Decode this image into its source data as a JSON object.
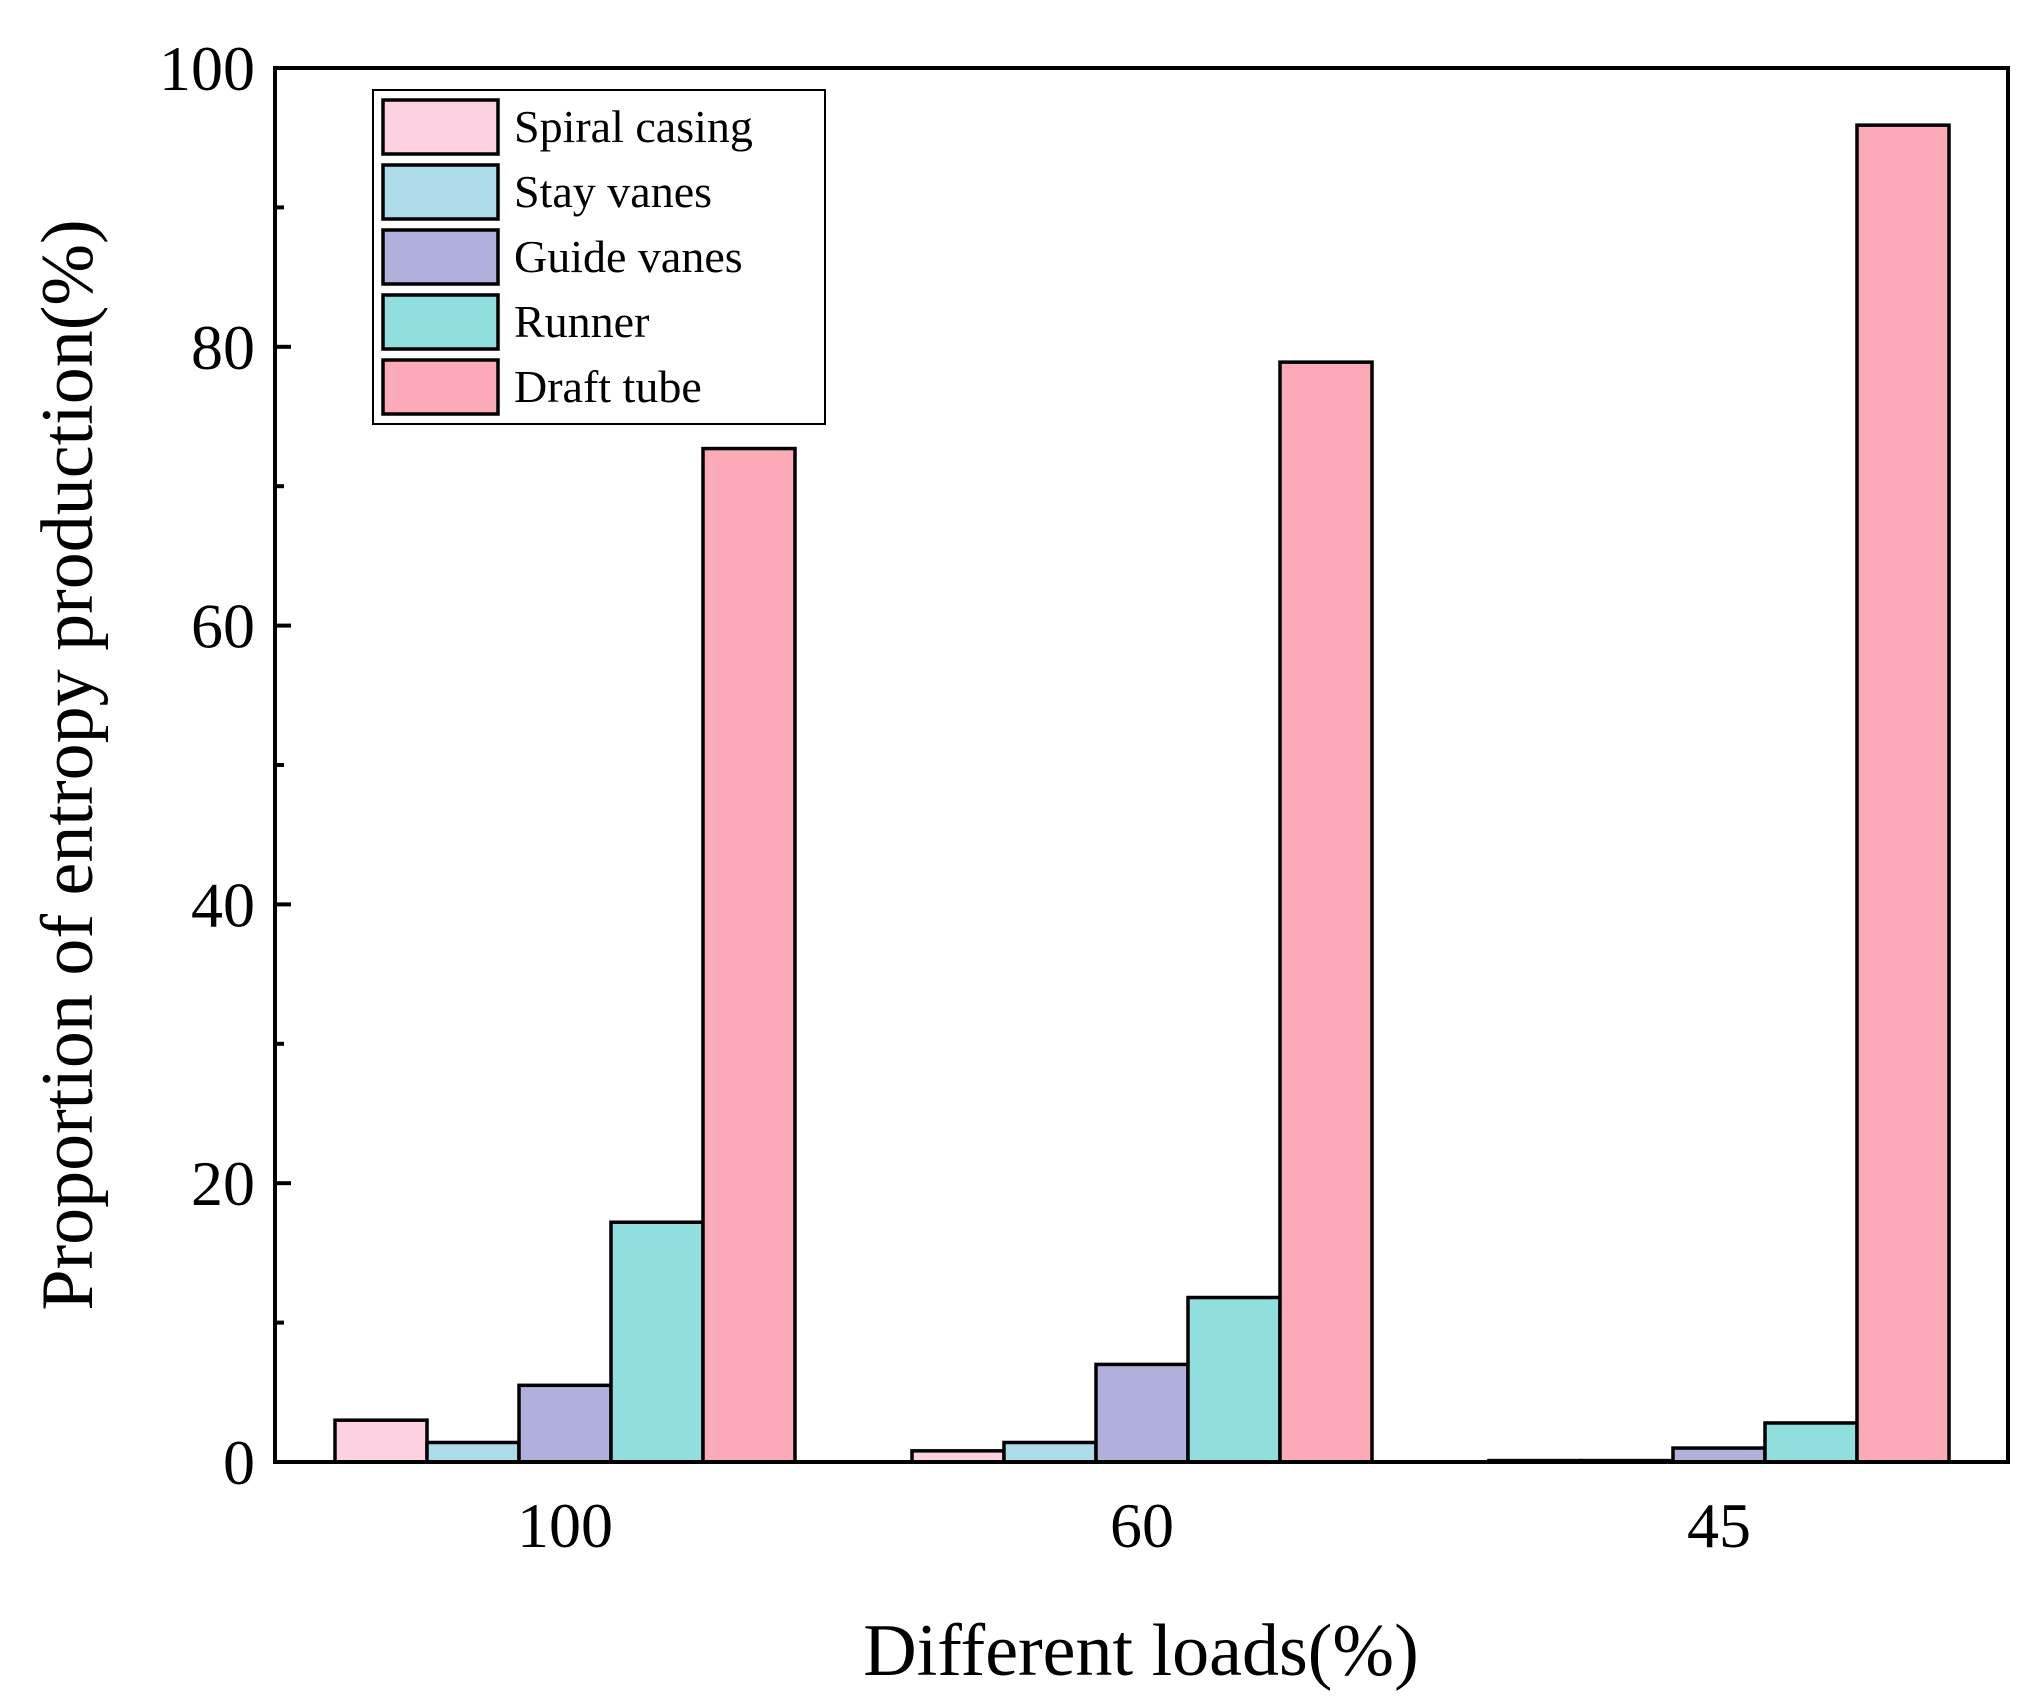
{
  "chart_data": {
    "type": "bar",
    "title": "",
    "xlabel": "Different loads(%)",
    "ylabel": "Proportion of entropy production(%)",
    "categories": [
      "100",
      "60",
      "45"
    ],
    "ylim": [
      0,
      100
    ],
    "yticks": [
      "0",
      "20",
      "40",
      "60",
      "80",
      "100"
    ],
    "legend_position": "top-left",
    "series": [
      {
        "name": "Spiral casing",
        "color": "#fdd0e2",
        "values": [
          3.0,
          0.8,
          0.1
        ]
      },
      {
        "name": "Stay vanes",
        "color": "#acdbea",
        "values": [
          1.4,
          1.4,
          0.1
        ]
      },
      {
        "name": "Guide vanes",
        "color": "#b1b0dd",
        "values": [
          5.5,
          7.0,
          1.0
        ]
      },
      {
        "name": "Runner",
        "color": "#90dfde",
        "values": [
          17.2,
          11.8,
          2.8
        ]
      },
      {
        "name": "Draft tube",
        "color": "#fdaab8",
        "values": [
          72.7,
          78.9,
          95.9
        ]
      }
    ]
  }
}
